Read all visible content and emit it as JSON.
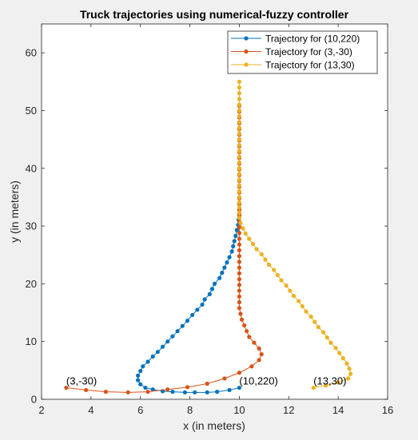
{
  "chart_data": {
    "type": "line",
    "title": "Truck trajectories using numerical-fuzzy controller",
    "xlabel": "x (in meters)",
    "ylabel": "y (in meters)",
    "xlim": [
      2,
      16
    ],
    "ylim": [
      0,
      65
    ],
    "xticks": [
      2,
      4,
      6,
      8,
      10,
      12,
      14,
      16
    ],
    "yticks": [
      0,
      10,
      20,
      30,
      40,
      50,
      60
    ],
    "grid": false,
    "legend": "top-right",
    "series": [
      {
        "name": "Trajectory for (10,220)",
        "color": "#0072BD",
        "points": [
          [
            10.0,
            2.0
          ],
          [
            9.6,
            1.6
          ],
          [
            9.1,
            1.3
          ],
          [
            8.7,
            1.2
          ],
          [
            8.2,
            1.2
          ],
          [
            7.8,
            1.2
          ],
          [
            7.3,
            1.3
          ],
          [
            6.9,
            1.4
          ],
          [
            6.5,
            1.7
          ],
          [
            6.2,
            2.0
          ],
          [
            6.0,
            2.6
          ],
          [
            5.9,
            3.3
          ],
          [
            5.9,
            4.1
          ],
          [
            6.0,
            4.9
          ],
          [
            6.1,
            5.7
          ],
          [
            6.3,
            6.5
          ],
          [
            6.5,
            7.4
          ],
          [
            6.7,
            8.2
          ],
          [
            6.9,
            9.1
          ],
          [
            7.1,
            10.0
          ],
          [
            7.3,
            10.9
          ],
          [
            7.5,
            11.8
          ],
          [
            7.7,
            12.7
          ],
          [
            7.9,
            13.6
          ],
          [
            8.1,
            14.6
          ],
          [
            8.3,
            15.5
          ],
          [
            8.5,
            16.4
          ],
          [
            8.6,
            17.3
          ],
          [
            8.8,
            18.2
          ],
          [
            8.9,
            19.1
          ],
          [
            9.0,
            20.0
          ],
          [
            9.2,
            21.0
          ],
          [
            9.3,
            21.9
          ],
          [
            9.4,
            22.8
          ],
          [
            9.5,
            23.7
          ],
          [
            9.6,
            24.6
          ],
          [
            9.7,
            25.6
          ],
          [
            9.75,
            26.5
          ],
          [
            9.8,
            27.4
          ],
          [
            9.85,
            28.3
          ],
          [
            9.9,
            29.3
          ],
          [
            9.95,
            30.2
          ],
          [
            9.97,
            31.1
          ],
          [
            10.0,
            32.0
          ],
          [
            10.0,
            33.0
          ],
          [
            10.0,
            34.0
          ],
          [
            10.0,
            35.0
          ],
          [
            10.0,
            36.0
          ],
          [
            10.0,
            37.0
          ],
          [
            10.0,
            38.0
          ],
          [
            10.0,
            39.0
          ],
          [
            10.0,
            40.0
          ],
          [
            10.0,
            41.0
          ],
          [
            10.0,
            42.0
          ],
          [
            10.0,
            43.0
          ],
          [
            10.0,
            44.0
          ],
          [
            10.0,
            45.0
          ],
          [
            10.0,
            46.0
          ],
          [
            10.0,
            47.0
          ],
          [
            10.0,
            48.0
          ],
          [
            10.0,
            49.0
          ],
          [
            10.0,
            50.0
          ],
          [
            10.0,
            51.0
          ]
        ]
      },
      {
        "name": "Trajectory for (3,-30)",
        "color": "#D95319",
        "points": [
          [
            3.0,
            2.0
          ],
          [
            3.8,
            1.6
          ],
          [
            4.6,
            1.3
          ],
          [
            5.5,
            1.2
          ],
          [
            6.3,
            1.3
          ],
          [
            7.1,
            1.7
          ],
          [
            7.9,
            2.1
          ],
          [
            8.7,
            2.7
          ],
          [
            9.4,
            3.6
          ],
          [
            10.0,
            4.6
          ],
          [
            10.5,
            5.7
          ],
          [
            10.8,
            6.8
          ],
          [
            10.9,
            7.8
          ],
          [
            10.8,
            8.8
          ],
          [
            10.6,
            9.8
          ],
          [
            10.4,
            10.8
          ],
          [
            10.3,
            11.8
          ],
          [
            10.2,
            12.8
          ],
          [
            10.1,
            13.8
          ],
          [
            10.05,
            14.8
          ],
          [
            10.0,
            15.8
          ],
          [
            10.0,
            16.8
          ],
          [
            10.0,
            17.8
          ],
          [
            10.0,
            18.8
          ],
          [
            10.0,
            19.8
          ],
          [
            10.0,
            20.8
          ],
          [
            10.0,
            21.8
          ],
          [
            10.0,
            22.8
          ],
          [
            10.0,
            23.8
          ],
          [
            10.0,
            24.8
          ],
          [
            10.0,
            25.8
          ],
          [
            10.0,
            26.8
          ],
          [
            10.0,
            27.8
          ],
          [
            10.0,
            28.8
          ],
          [
            10.0,
            29.8
          ],
          [
            10.0,
            30.8
          ],
          [
            10.0,
            31.8
          ],
          [
            10.0,
            32.8
          ],
          [
            10.0,
            33.8
          ],
          [
            10.0,
            34.8
          ],
          [
            10.0,
            35.8
          ],
          [
            10.0,
            36.8
          ],
          [
            10.0,
            37.8
          ],
          [
            10.0,
            38.8
          ],
          [
            10.0,
            39.8
          ],
          [
            10.0,
            40.8
          ],
          [
            10.0,
            41.8
          ],
          [
            10.0,
            42.8
          ],
          [
            10.0,
            43.8
          ],
          [
            10.0,
            44.8
          ],
          [
            10.0,
            45.8
          ],
          [
            10.0,
            46.8
          ],
          [
            10.0,
            47.8
          ],
          [
            10.0,
            48.8
          ],
          [
            10.0,
            49.8
          ],
          [
            10.0,
            50.8
          ]
        ]
      },
      {
        "name": "Trajectory for (13,30)",
        "color": "#EDB120",
        "points": [
          [
            13.0,
            2.0
          ],
          [
            13.5,
            2.4
          ],
          [
            14.0,
            2.9
          ],
          [
            14.4,
            3.6
          ],
          [
            14.5,
            4.4
          ],
          [
            14.45,
            5.3
          ],
          [
            14.35,
            6.2
          ],
          [
            14.2,
            7.1
          ],
          [
            14.05,
            8.0
          ],
          [
            13.9,
            8.9
          ],
          [
            13.7,
            9.8
          ],
          [
            13.55,
            10.7
          ],
          [
            13.4,
            11.6
          ],
          [
            13.2,
            12.5
          ],
          [
            13.05,
            13.4
          ],
          [
            12.9,
            14.3
          ],
          [
            12.7,
            15.2
          ],
          [
            12.55,
            16.1
          ],
          [
            12.4,
            17.0
          ],
          [
            12.2,
            17.9
          ],
          [
            12.05,
            18.8
          ],
          [
            11.9,
            19.7
          ],
          [
            11.7,
            20.6
          ],
          [
            11.55,
            21.5
          ],
          [
            11.4,
            22.4
          ],
          [
            11.2,
            23.3
          ],
          [
            11.05,
            24.2
          ],
          [
            10.9,
            25.1
          ],
          [
            10.7,
            26.0
          ],
          [
            10.55,
            26.9
          ],
          [
            10.4,
            27.8
          ],
          [
            10.25,
            28.7
          ],
          [
            10.15,
            29.6
          ],
          [
            10.05,
            30.5
          ],
          [
            10.0,
            31.4
          ],
          [
            10.0,
            32.3
          ],
          [
            10.0,
            33.2
          ],
          [
            10.0,
            34.1
          ],
          [
            10.0,
            35.0
          ],
          [
            10.0,
            36.0
          ],
          [
            10.0,
            37.0
          ],
          [
            10.0,
            38.0
          ],
          [
            10.0,
            39.0
          ],
          [
            10.0,
            40.0
          ],
          [
            10.0,
            41.0
          ],
          [
            10.0,
            42.0
          ],
          [
            10.0,
            43.0
          ],
          [
            10.0,
            44.0
          ],
          [
            10.0,
            45.0
          ],
          [
            10.0,
            46.0
          ],
          [
            10.0,
            47.0
          ],
          [
            10.0,
            48.0
          ],
          [
            10.0,
            49.0
          ],
          [
            10.0,
            50.0
          ],
          [
            10.0,
            51.0
          ],
          [
            10.0,
            52.0
          ],
          [
            10.0,
            53.0
          ],
          [
            10.0,
            54.0
          ],
          [
            10.0,
            55.0
          ]
        ]
      }
    ],
    "annotations": [
      {
        "text": "(3,-30)",
        "x": 3.0,
        "y": 2.0
      },
      {
        "text": "(10,220)",
        "x": 10.0,
        "y": 2.0
      },
      {
        "text": "(13,30)",
        "x": 13.0,
        "y": 2.0
      }
    ]
  }
}
